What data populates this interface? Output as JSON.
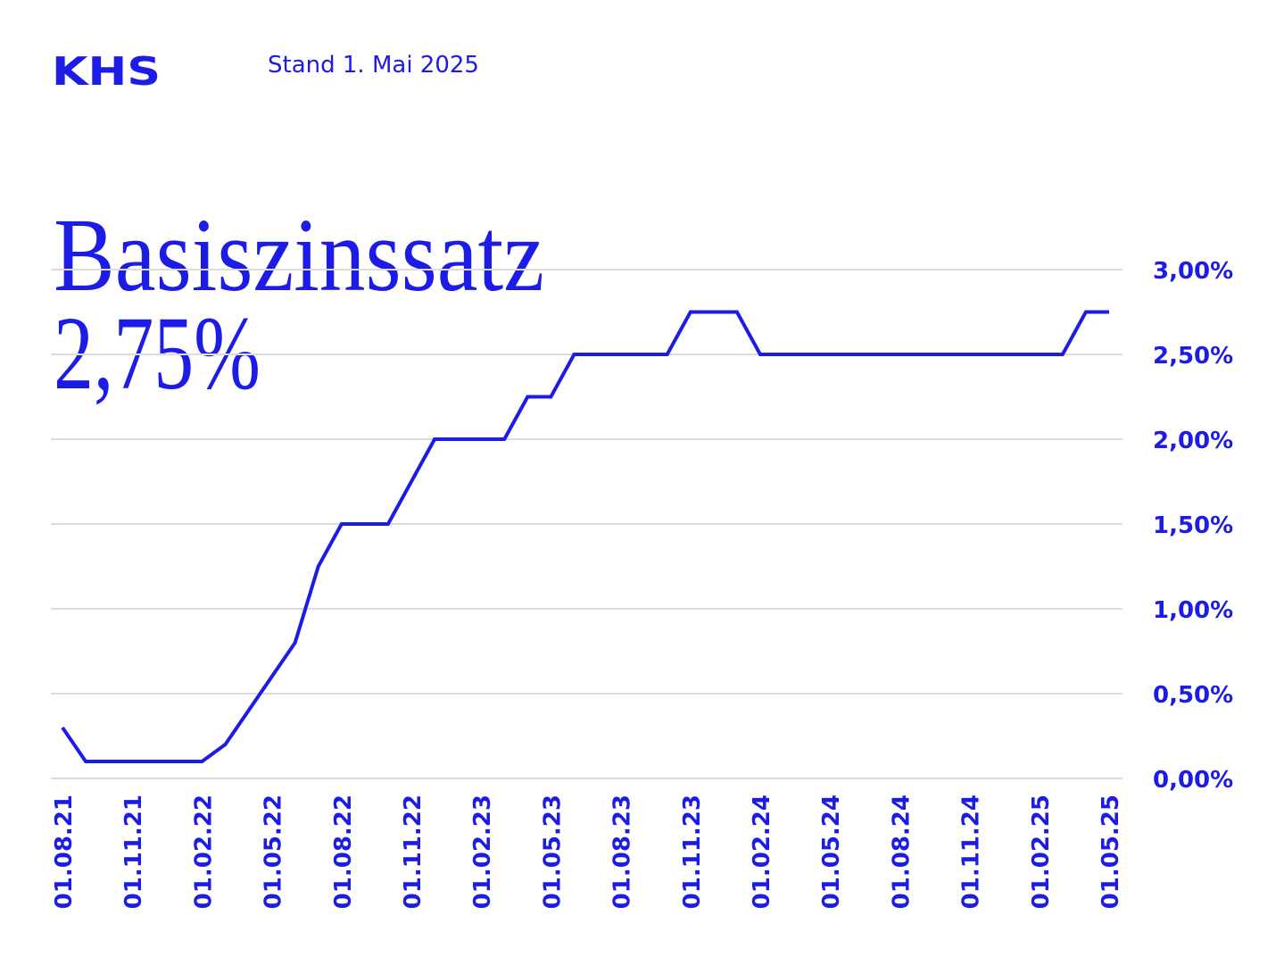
{
  "header": {
    "logo": "KHS",
    "date": "Stand 1. Mai 2025"
  },
  "chart_data": {
    "type": "line",
    "title": "Basiszinssatz",
    "subtitle": "2,75%",
    "categories": [
      "01.08.21",
      null,
      null,
      "01.11.21",
      null,
      null,
      "01.02.22",
      null,
      null,
      "01.05.22",
      null,
      null,
      "01.08.22",
      null,
      null,
      "01.11.22",
      null,
      null,
      "01.02.23",
      null,
      null,
      "01.05.23",
      null,
      null,
      "01.08.23",
      null,
      null,
      "01.11.23",
      null,
      null,
      "01.02.24",
      null,
      null,
      "01.05.24",
      null,
      null,
      "01.08.24",
      null,
      null,
      "01.11.24",
      null,
      null,
      "01.02.25",
      null,
      null,
      "01.05.25"
    ],
    "values": [
      0.3,
      0.1,
      0.1,
      0.1,
      0.1,
      0.1,
      0.1,
      0.2,
      0.4,
      0.6,
      0.8,
      1.25,
      1.5,
      1.5,
      1.5,
      1.75,
      2.0,
      2.0,
      2.0,
      2.0,
      2.25,
      2.25,
      2.5,
      2.5,
      2.5,
      2.5,
      2.5,
      2.75,
      2.75,
      2.75,
      2.5,
      2.5,
      2.5,
      2.5,
      2.5,
      2.5,
      2.5,
      2.5,
      2.5,
      2.5,
      2.5,
      2.5,
      2.5,
      2.5,
      2.75,
      2.75
    ],
    "color": "#1c1ce6",
    "ylim": [
      0,
      3
    ],
    "yticks": [
      {
        "value": 0,
        "label": "0,00%"
      },
      {
        "value": 0.5,
        "label": "0,50%"
      },
      {
        "value": 1,
        "label": "1,00%"
      },
      {
        "value": 1.5,
        "label": "1,50%"
      },
      {
        "value": 2,
        "label": "2,00%"
      },
      {
        "value": 2.5,
        "label": "2,50%"
      },
      {
        "value": 3,
        "label": "3,00%"
      }
    ],
    "grid": true
  }
}
